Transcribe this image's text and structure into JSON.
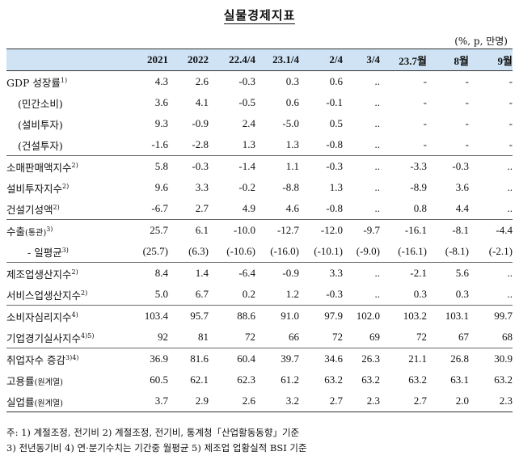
{
  "title": "실물경제지표",
  "unit": "(%, p, 만명)",
  "columns": [
    "2021",
    "2022",
    "22.4/4",
    "23.1/4",
    "2/4",
    "3/4",
    "23.7월",
    "8월",
    "9월"
  ],
  "rows": [
    {
      "label": "GDP 성장률",
      "sup": "1)",
      "style": "",
      "values": [
        "4.3",
        "2.6",
        "-0.3",
        "0.3",
        "0.6",
        "..",
        "-",
        "-",
        "-"
      ]
    },
    {
      "label": "(민간소비)",
      "sup": "",
      "style": "indent",
      "values": [
        "3.6",
        "4.1",
        "-0.5",
        "0.6",
        "-0.1",
        "..",
        "-",
        "-",
        "-"
      ]
    },
    {
      "label": "(설비투자)",
      "sup": "",
      "style": "indent",
      "values": [
        "9.3",
        "-0.9",
        "2.4",
        "-5.0",
        "0.5",
        "..",
        "-",
        "-",
        "-"
      ]
    },
    {
      "label": "(건설투자)",
      "sup": "",
      "style": "indent",
      "values": [
        "-1.6",
        "-2.8",
        "1.3",
        "1.3",
        "-0.8",
        "..",
        "-",
        "-",
        "-"
      ]
    },
    {
      "label": "소매판매액지수",
      "sup": "2)",
      "style": "gstart",
      "values": [
        "5.8",
        "-0.3",
        "-1.4",
        "1.1",
        "-0.3",
        "..",
        "-3.3",
        "-0.3",
        ".."
      ]
    },
    {
      "label": "설비투자지수",
      "sup": "2)",
      "style": "",
      "values": [
        "9.6",
        "3.3",
        "-0.2",
        "-8.8",
        "1.3",
        "..",
        "-8.9",
        "3.6",
        ".."
      ]
    },
    {
      "label": "건설기성액",
      "sup": "2)",
      "style": "",
      "values": [
        "-6.7",
        "2.7",
        "4.9",
        "4.6",
        "-0.8",
        "..",
        "0.8",
        "4.4",
        ".."
      ]
    },
    {
      "label": "수출",
      "sub": "(통관)",
      "sup": "3)",
      "style": "gstart",
      "values": [
        "25.7",
        "6.1",
        "-10.0",
        "-12.7",
        "-12.0",
        "-9.7",
        "-16.1",
        "-8.1",
        "-4.4"
      ]
    },
    {
      "label": "- 일평균",
      "sup": "3)",
      "style": "dash",
      "values": [
        "(25.7)",
        "(6.3)",
        "(-10.6)",
        "(-16.0)",
        "(-10.1)",
        "(-9.0)",
        "(-16.1)",
        "(-8.1)",
        "(-2.1)"
      ]
    },
    {
      "label": "제조업생산지수",
      "sup": "2)",
      "style": "gstart",
      "values": [
        "8.4",
        "1.4",
        "-6.4",
        "-0.9",
        "3.3",
        "..",
        "-2.1",
        "5.6",
        ".."
      ]
    },
    {
      "label": "서비스업생산지수",
      "sup": "2)",
      "style": "",
      "values": [
        "5.0",
        "6.7",
        "0.2",
        "1.2",
        "-0.3",
        "..",
        "0.3",
        "0.3",
        ".."
      ]
    },
    {
      "label": "소비자심리지수",
      "sup": "4)",
      "style": "gstart",
      "values": [
        "103.4",
        "95.7",
        "88.6",
        "91.0",
        "97.9",
        "102.0",
        "103.2",
        "103.1",
        "99.7"
      ]
    },
    {
      "label": "기업경기실사지수",
      "sup": "4)5)",
      "style": "",
      "values": [
        "92",
        "81",
        "72",
        "66",
        "72",
        "69",
        "72",
        "67",
        "68"
      ]
    },
    {
      "label": "취업자수 증감",
      "sup": "3)4)",
      "style": "gstart",
      "values": [
        "36.9",
        "81.6",
        "60.4",
        "39.7",
        "34.6",
        "26.3",
        "21.1",
        "26.8",
        "30.9"
      ]
    },
    {
      "label": "고용률",
      "sub": "(원계열)",
      "sup": "",
      "style": "",
      "values": [
        "60.5",
        "62.1",
        "62.3",
        "61.2",
        "63.2",
        "63.2",
        "63.2",
        "63.1",
        "63.2"
      ]
    },
    {
      "label": "실업률",
      "sub": "(원계열)",
      "sup": "",
      "style": "lastrow",
      "values": [
        "3.7",
        "2.9",
        "2.6",
        "3.2",
        "2.7",
        "2.3",
        "2.7",
        "2.0",
        "2.3"
      ]
    }
  ],
  "notes": [
    "주: 1) 계절조정, 전기비   2) 계절조정, 전기비, 통계청「산업활동동향」기준",
    "     3) 전년동기비          4) 연·분기수치는 기간중 월평균     5) 제조업 업황실적 BSI 기준"
  ]
}
